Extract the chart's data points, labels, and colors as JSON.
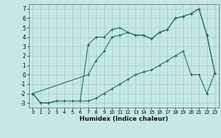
{
  "xlabel": "Humidex (Indice chaleur)",
  "xlim": [
    -0.5,
    23.5
  ],
  "ylim": [
    -3.5,
    7.5
  ],
  "yticks": [
    -3,
    -2,
    -1,
    0,
    1,
    2,
    3,
    4,
    5,
    6,
    7
  ],
  "xticks": [
    0,
    1,
    2,
    3,
    4,
    5,
    6,
    7,
    8,
    9,
    10,
    11,
    12,
    13,
    14,
    15,
    16,
    17,
    18,
    19,
    20,
    21,
    22,
    23
  ],
  "bg_color": "#c5e8e5",
  "line_color": "#1a6b5a",
  "grid_color": "#a0c8c5",
  "line1_x": [
    0,
    1,
    2,
    3,
    4,
    5,
    6,
    7,
    8,
    9,
    10,
    11,
    12,
    13,
    14,
    15,
    16,
    17,
    18,
    19,
    20,
    21,
    22,
    23
  ],
  "line1_y": [
    -2,
    -3,
    -3,
    -2.8,
    -2.8,
    -2.8,
    -2.8,
    -2.8,
    -2.5,
    -2,
    -1.5,
    -1,
    -0.5,
    0,
    0.3,
    0.5,
    1,
    1.5,
    2,
    2.5,
    0,
    0,
    -2,
    0.2
  ],
  "line2_x": [
    0,
    1,
    2,
    3,
    4,
    5,
    6,
    7,
    8,
    9,
    10,
    11,
    12,
    13,
    14,
    15,
    16,
    17,
    18,
    19,
    20,
    21,
    22,
    23
  ],
  "line2_y": [
    -2,
    -3,
    -3,
    -2.8,
    -2.8,
    -2.8,
    -2.8,
    3.2,
    4.0,
    4.0,
    4.8,
    5.0,
    4.5,
    4.2,
    4.2,
    3.8,
    4.5,
    4.8,
    6.0,
    6.2,
    6.5,
    7.0,
    4.2,
    0.2
  ],
  "line3_x": [
    0,
    7,
    8,
    9,
    10,
    11,
    12,
    13,
    14,
    15,
    16,
    17,
    18,
    19,
    20,
    21,
    22,
    23
  ],
  "line3_y": [
    -2,
    0.0,
    1.5,
    2.5,
    4.0,
    4.2,
    4.5,
    4.2,
    4.2,
    3.8,
    4.5,
    4.8,
    6.0,
    6.2,
    6.5,
    7.0,
    4.2,
    0.2
  ]
}
